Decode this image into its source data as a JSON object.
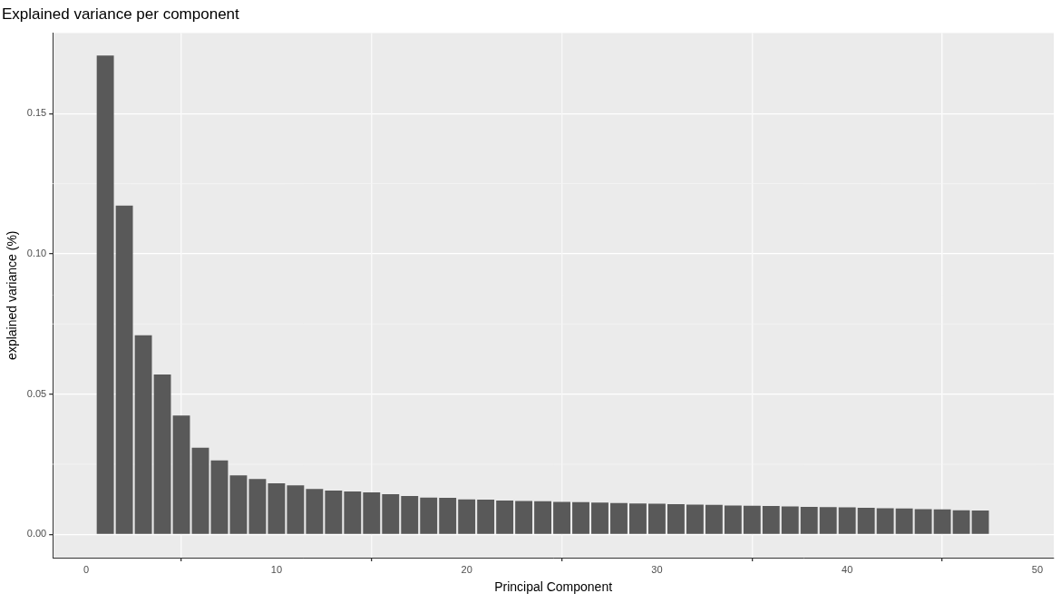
{
  "chart_data": {
    "type": "bar",
    "title": "Explained variance per component",
    "x_label": "Principal Component",
    "y_label": "explained variance (%)",
    "x": [
      1,
      2,
      3,
      4,
      5,
      6,
      7,
      8,
      9,
      10,
      11,
      12,
      13,
      14,
      15,
      16,
      17,
      18,
      19,
      20,
      21,
      22,
      23,
      24,
      25,
      26,
      27,
      28,
      29,
      30,
      31,
      32,
      33,
      34,
      35,
      36,
      37,
      38,
      39,
      40,
      41,
      42,
      43,
      44,
      45,
      46,
      47
    ],
    "values": [
      0.1707,
      0.1172,
      0.071,
      0.057,
      0.0424,
      0.0309,
      0.0264,
      0.021,
      0.0197,
      0.0182,
      0.0175,
      0.0162,
      0.0156,
      0.0153,
      0.015,
      0.0143,
      0.0137,
      0.0131,
      0.013,
      0.0125,
      0.0124,
      0.0121,
      0.0119,
      0.0118,
      0.0116,
      0.0115,
      0.0113,
      0.0112,
      0.011,
      0.0109,
      0.0108,
      0.0106,
      0.0105,
      0.0103,
      0.0102,
      0.0101,
      0.01,
      0.0098,
      0.0097,
      0.0096,
      0.0095,
      0.0093,
      0.0092,
      0.009,
      0.0089,
      0.0086,
      0.0085
    ],
    "color": "#595959",
    "xlim": [
      -1.76,
      50.86
    ],
    "xticks": [
      0,
      10,
      20,
      30,
      40,
      50
    ],
    "ylim": [
      -0.0083,
      0.1787
    ],
    "yticks": [
      {
        "value": 0,
        "label": "0.00"
      },
      {
        "value": 0.05,
        "label": "0.05"
      },
      {
        "value": 0.1,
        "label": "0.10"
      },
      {
        "value": 0.15,
        "label": "0.15"
      }
    ],
    "grid": true
  }
}
